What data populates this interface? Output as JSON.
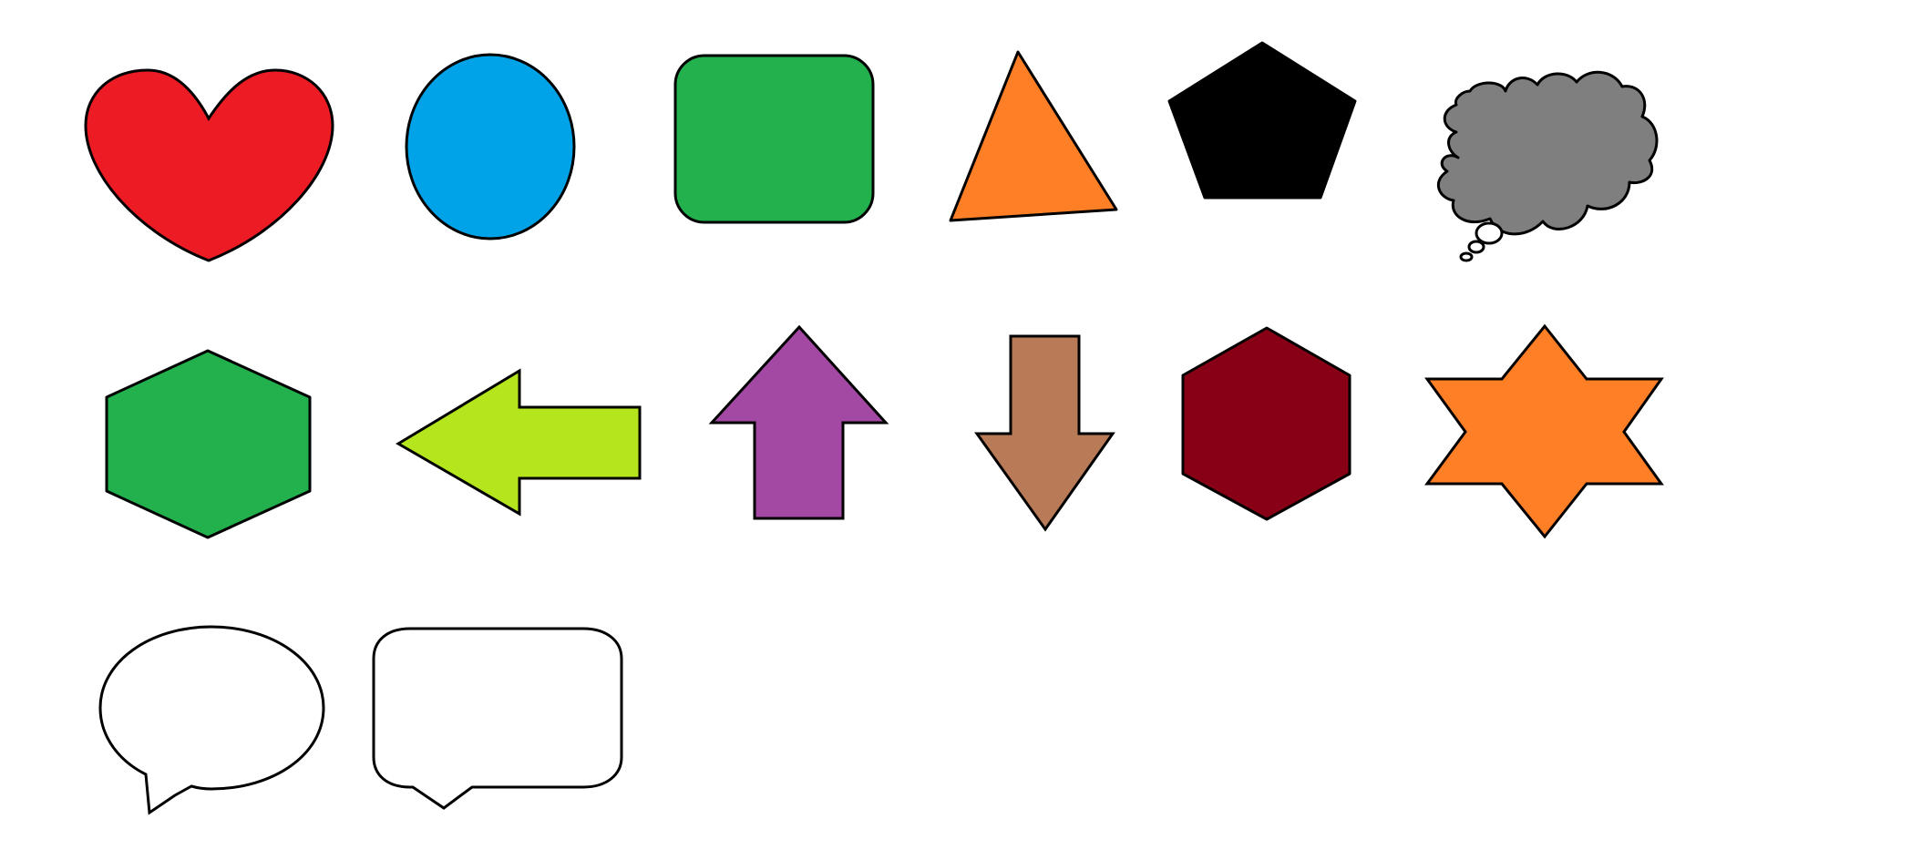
{
  "canvas": {
    "background": "#ffffff"
  },
  "stroke_color": "#000000",
  "shapes": [
    {
      "kind": "heart",
      "fill": "#ed1c24"
    },
    {
      "kind": "ellipse",
      "fill": "#00a2e8"
    },
    {
      "kind": "rounded-rectangle",
      "fill": "#22b14c"
    },
    {
      "kind": "triangle",
      "fill": "#ff7f27"
    },
    {
      "kind": "pentagon",
      "fill": "#000000"
    },
    {
      "kind": "thought-bubble",
      "fill": "#7f7f7f"
    },
    {
      "kind": "hexagon",
      "fill": "#22b14c"
    },
    {
      "kind": "arrow-left",
      "fill": "#b5e61d"
    },
    {
      "kind": "arrow-up",
      "fill": "#a349a4"
    },
    {
      "kind": "arrow-down",
      "fill": "#b97a57"
    },
    {
      "kind": "hexagon",
      "fill": "#880015"
    },
    {
      "kind": "six-point-star",
      "fill": "#ff7f27"
    },
    {
      "kind": "oval-speech-bubble",
      "fill": "#ffffff"
    },
    {
      "kind": "rectangular-speech-bubble",
      "fill": "#ffffff"
    }
  ]
}
